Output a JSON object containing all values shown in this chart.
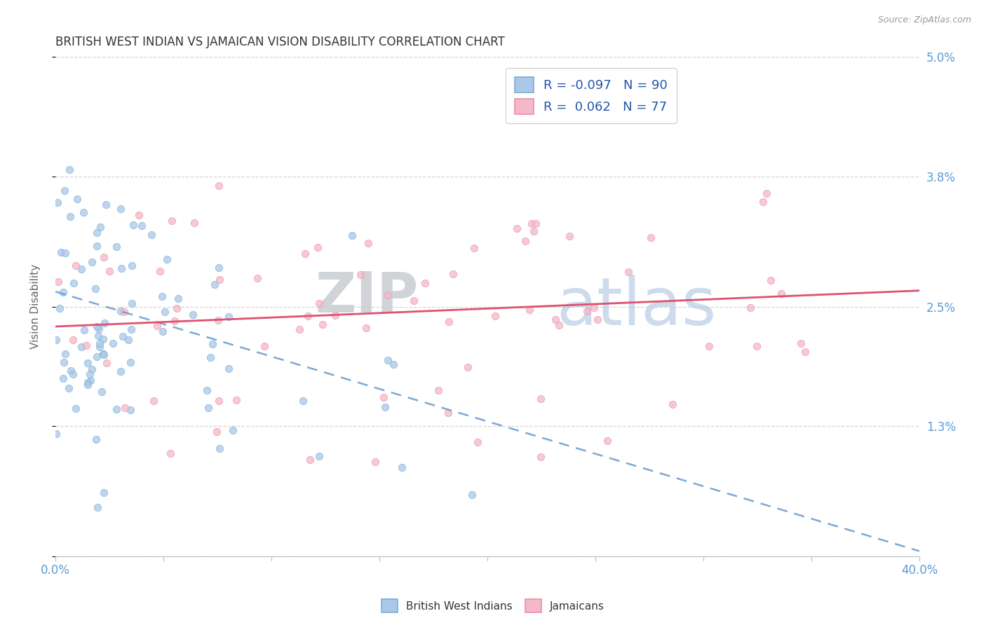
{
  "title": "BRITISH WEST INDIAN VS JAMAICAN VISION DISABILITY CORRELATION CHART",
  "source": "Source: ZipAtlas.com",
  "ylabel": "Vision Disability",
  "yticks": [
    0.0,
    1.3,
    2.5,
    3.8,
    5.0
  ],
  "ytick_labels": [
    "",
    "1.3%",
    "2.5%",
    "3.8%",
    "5.0%"
  ],
  "xlim": [
    0.0,
    40.0
  ],
  "ylim": [
    0.0,
    5.0
  ],
  "series1": {
    "label": "British West Indians",
    "R": -0.097,
    "N": 90,
    "color": "#aac8e8",
    "edge_color": "#7aadd4",
    "reg_color": "#6699cc",
    "reg_style": "--"
  },
  "series2": {
    "label": "Jamaicans",
    "R": 0.062,
    "N": 77,
    "color": "#f4b8c8",
    "edge_color": "#e890a8",
    "reg_color": "#e05070",
    "reg_style": "-"
  },
  "watermark_zip": "ZIP",
  "watermark_atlas": "atlas",
  "background_color": "#ffffff",
  "grid_color": "#cccccc",
  "title_color": "#333333",
  "axis_label_color": "#5b9bd5",
  "legend_R_color": "#2255aa"
}
